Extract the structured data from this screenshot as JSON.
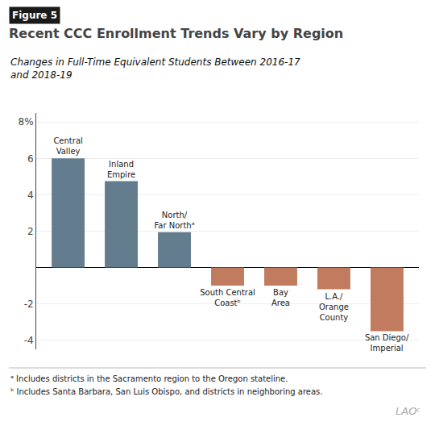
{
  "chart_data": {
    "type": "bar",
    "title": "Recent CCC Enrollment Trends Vary by Region",
    "subtitle": "Changes in Full-Time Equivalent Students Between 2016-17\nand 2018-19",
    "annotations": [
      "Figure 5",
      "ᵃ Includes districts in the Sacramento region to the Oregon stateline.",
      "ᵇ Includes Santa Barbara, San Luis Obispo, and districts in neighboring areas.",
      "LAOᶜ"
    ],
    "categories": [
      "Central\nValley",
      "Inland\nEmpire",
      "North/\nFar Northᵃ",
      "South Central\nCoastᵇ",
      "Bay\nArea",
      "L.A./\nOrange\nCounty",
      "San Diego/\nImperial"
    ],
    "values": [
      6.0,
      4.75,
      1.95,
      -1.0,
      -1.0,
      -1.2,
      -3.5
    ],
    "colors": [
      "#637c8e",
      "#637c8e",
      "#637c8e",
      "#c17b5e",
      "#c17b5e",
      "#c17b5e",
      "#c17b5e"
    ],
    "ylim": [
      -4.5,
      8.5
    ],
    "yticks": [
      -4,
      -2,
      {
        "value": 0,
        "label": ""
      },
      2,
      4,
      6,
      {
        "value": 8,
        "label": "8%"
      }
    ],
    "grid": true,
    "tick_labels": "y",
    "data_labels": false
  }
}
